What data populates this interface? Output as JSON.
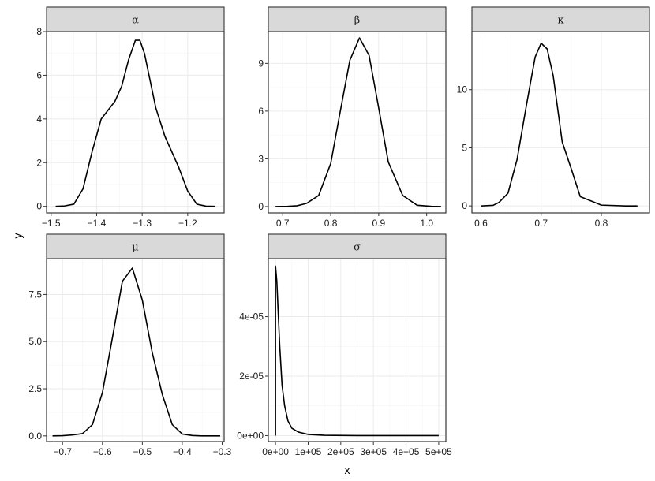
{
  "chart_data": {
    "type": "line",
    "xlabel": "x",
    "ylabel": "y",
    "grid": true,
    "panels": [
      {
        "strip": "α",
        "xlim": [
          -1.51,
          -1.12
        ],
        "ylim": [
          -0.3,
          8.0
        ],
        "xticks": [
          -1.5,
          -1.4,
          -1.3,
          -1.2
        ],
        "xtick_labels": [
          "-1.5",
          "-1.4",
          "-1.3",
          "-1.2"
        ],
        "yticks": [
          0,
          2,
          4,
          6,
          8
        ],
        "ytick_labels": [
          "0",
          "2",
          "4",
          "6",
          "8"
        ],
        "x": [
          -1.49,
          -1.47,
          -1.45,
          -1.43,
          -1.41,
          -1.39,
          -1.375,
          -1.36,
          -1.345,
          -1.33,
          -1.315,
          -1.305,
          -1.295,
          -1.285,
          -1.27,
          -1.25,
          -1.22,
          -1.2,
          -1.18,
          -1.16,
          -1.14
        ],
        "y": [
          0.0,
          0.02,
          0.1,
          0.8,
          2.5,
          4.0,
          4.4,
          4.8,
          5.5,
          6.7,
          7.6,
          7.6,
          7.0,
          6.0,
          4.5,
          3.2,
          1.8,
          0.7,
          0.1,
          0.01,
          0.0
        ]
      },
      {
        "strip": "β",
        "xlim": [
          0.67,
          1.04
        ],
        "ylim": [
          -0.4,
          11.0
        ],
        "xticks": [
          0.7,
          0.8,
          0.9,
          1.0
        ],
        "xtick_labels": [
          "0.7",
          "0.8",
          "0.9",
          "1.0"
        ],
        "yticks": [
          0,
          3,
          6,
          9
        ],
        "ytick_labels": [
          "0",
          "3",
          "6",
          "9"
        ],
        "x": [
          0.685,
          0.71,
          0.73,
          0.75,
          0.775,
          0.8,
          0.82,
          0.84,
          0.86,
          0.88,
          0.9,
          0.92,
          0.95,
          0.98,
          1.01,
          1.03
        ],
        "y": [
          0.0,
          0.01,
          0.05,
          0.2,
          0.7,
          2.7,
          6.0,
          9.2,
          10.6,
          9.5,
          6.2,
          2.8,
          0.7,
          0.08,
          0.01,
          0.0
        ]
      },
      {
        "strip": "κ",
        "xlim": [
          0.585,
          0.88
        ],
        "ylim": [
          -0.6,
          15.0
        ],
        "xticks": [
          0.6,
          0.7,
          0.8
        ],
        "xtick_labels": [
          "0.6",
          "0.7",
          "0.8"
        ],
        "yticks": [
          0,
          5,
          10
        ],
        "ytick_labels": [
          "0",
          "5",
          "10"
        ],
        "x": [
          0.6,
          0.62,
          0.63,
          0.645,
          0.66,
          0.675,
          0.69,
          0.7,
          0.71,
          0.72,
          0.735,
          0.75,
          0.765,
          0.8,
          0.84,
          0.86
        ],
        "y": [
          0.0,
          0.05,
          0.3,
          1.1,
          4.0,
          8.5,
          12.8,
          14.0,
          13.5,
          11.2,
          5.5,
          3.2,
          0.8,
          0.07,
          0.0,
          0.0
        ]
      },
      {
        "strip": "μ",
        "xlim": [
          -0.74,
          -0.295
        ],
        "ylim": [
          -0.3,
          9.4
        ],
        "xticks": [
          -0.7,
          -0.6,
          -0.5,
          -0.4,
          -0.3
        ],
        "xtick_labels": [
          "-0.7",
          "-0.6",
          "-0.5",
          "-0.4",
          "-0.3"
        ],
        "yticks": [
          0,
          2.5,
          5.0,
          7.5
        ],
        "ytick_labels": [
          "0.0",
          "2.5",
          "5.0",
          "7.5"
        ],
        "x": [
          -0.725,
          -0.7,
          -0.675,
          -0.65,
          -0.625,
          -0.6,
          -0.575,
          -0.55,
          -0.525,
          -0.5,
          -0.475,
          -0.45,
          -0.425,
          -0.4,
          -0.375,
          -0.35,
          -0.305
        ],
        "y": [
          0.0,
          0.01,
          0.05,
          0.12,
          0.6,
          2.3,
          5.2,
          8.2,
          8.9,
          7.2,
          4.4,
          2.2,
          0.6,
          0.1,
          0.02,
          0.0,
          0.0
        ]
      },
      {
        "strip": "σ",
        "xlim": [
          -22000,
          522000
        ],
        "ylim": [
          -2e-06,
          5.95e-05
        ],
        "xticks": [
          0,
          100000,
          200000,
          300000,
          400000,
          500000
        ],
        "xtick_labels": [
          "0e+00",
          "1e+05",
          "2e+05",
          "3e+05",
          "4e+05",
          "5e+05"
        ],
        "yticks": [
          0,
          2e-05,
          4e-05
        ],
        "ytick_labels": [
          "0e+00",
          "2e-05",
          "4e-05"
        ],
        "x": [
          0,
          0,
          4000,
          8000,
          13000,
          20000,
          28000,
          38000,
          50000,
          70000,
          100000,
          150000,
          250000,
          500000
        ],
        "y": [
          0.0,
          5.7e-05,
          5.2e-05,
          4.2e-05,
          3e-05,
          1.7e-05,
          1e-05,
          5e-06,
          2.5e-06,
          1.2e-06,
          4e-07,
          1e-07,
          0.0,
          0.0
        ]
      }
    ]
  }
}
